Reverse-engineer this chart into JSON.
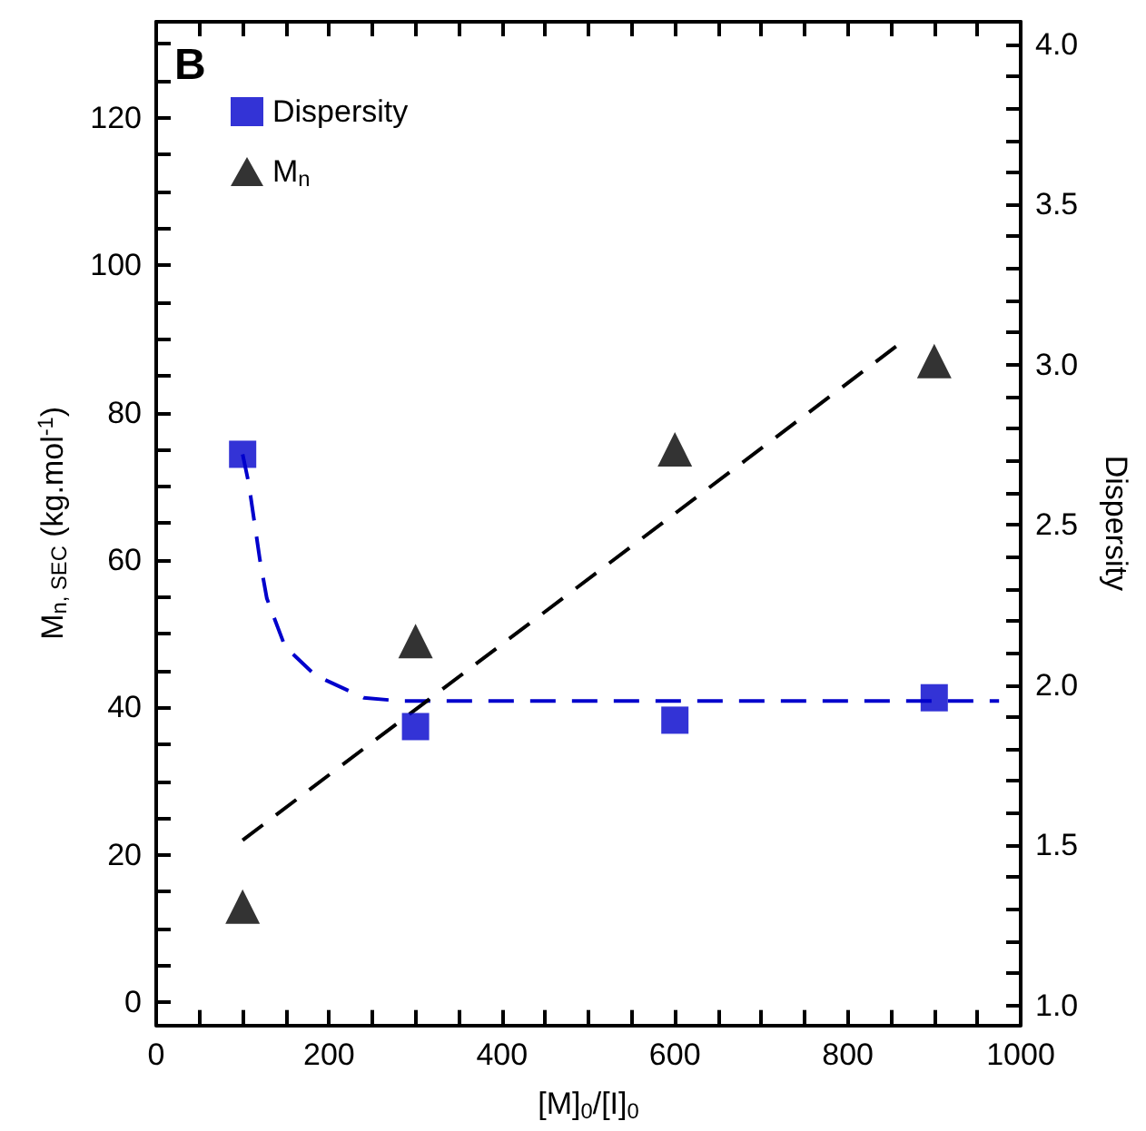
{
  "chart_data": {
    "type": "scatter",
    "xlabel": "[M]$_{0}$/[I]$_{0}$",
    "ylabel": "M$_{n, SEC}$ (kg.mol$^{-1}$)",
    "y2label": "Dispersity",
    "annotations": [
      "B"
    ],
    "xlim": [
      0,
      1000
    ],
    "xticks": [
      0,
      {
        "value": 50,
        "label": null
      },
      {
        "value": 100,
        "label": null
      },
      {
        "value": 150,
        "label": null
      },
      200,
      {
        "value": 250,
        "label": null
      },
      {
        "value": 300,
        "label": null
      },
      {
        "value": 350,
        "label": null
      },
      400,
      {
        "value": 450,
        "label": null
      },
      {
        "value": 500,
        "label": null
      },
      {
        "value": 550,
        "label": null
      },
      600,
      {
        "value": 650,
        "label": null
      },
      {
        "value": 700,
        "label": null
      },
      {
        "value": 750,
        "label": null
      },
      800,
      {
        "value": 850,
        "label": null
      },
      {
        "value": 900,
        "label": null
      },
      {
        "value": 950,
        "label": null
      },
      1000
    ],
    "ylim": [
      -3,
      133
    ],
    "yticks": [
      0,
      {
        "value": 5,
        "label": null
      },
      {
        "value": 10,
        "label": null
      },
      {
        "value": 15,
        "label": null
      },
      20,
      {
        "value": 25,
        "label": null
      },
      {
        "value": 30,
        "label": null
      },
      {
        "value": 35,
        "label": null
      },
      40,
      {
        "value": 45,
        "label": null
      },
      {
        "value": 50,
        "label": null
      },
      {
        "value": 55,
        "label": null
      },
      60,
      {
        "value": 65,
        "label": null
      },
      {
        "value": 70,
        "label": null
      },
      {
        "value": 75,
        "label": null
      },
      80,
      {
        "value": 85,
        "label": null
      },
      {
        "value": 90,
        "label": null
      },
      {
        "value": 95,
        "label": null
      },
      100,
      {
        "value": 105,
        "label": null
      },
      {
        "value": 110,
        "label": null
      },
      {
        "value": 115,
        "label": null
      },
      120,
      {
        "value": 125,
        "label": null
      },
      {
        "value": 130,
        "label": null
      }
    ],
    "y2lim": [
      0.94,
      4.07
    ],
    "y2ticks": [
      {
        "value": 1,
        "label": "1.0"
      },
      {
        "value": 1.1,
        "label": null
      },
      {
        "value": 1.2,
        "label": null
      },
      {
        "value": 1.3,
        "label": null
      },
      {
        "value": 1.4,
        "label": null
      },
      1.5,
      {
        "value": 1.6,
        "label": null
      },
      {
        "value": 1.7,
        "label": null
      },
      {
        "value": 1.8,
        "label": null
      },
      {
        "value": 1.9,
        "label": null
      },
      {
        "value": 2,
        "label": "2.0"
      },
      {
        "value": 2.1,
        "label": null
      },
      {
        "value": 2.2,
        "label": null
      },
      {
        "value": 2.3,
        "label": null
      },
      {
        "value": 2.4,
        "label": null
      },
      2.5,
      {
        "value": 2.6,
        "label": null
      },
      {
        "value": 2.7,
        "label": null
      },
      {
        "value": 2.8,
        "label": null
      },
      {
        "value": 2.9,
        "label": null
      },
      {
        "value": 3,
        "label": "3.0"
      },
      {
        "value": 3.1,
        "label": null
      },
      {
        "value": 3.2,
        "label": null
      },
      {
        "value": 3.3,
        "label": null
      },
      {
        "value": 3.4,
        "label": null
      },
      3.5,
      {
        "value": 3.6,
        "label": null
      },
      {
        "value": 3.7,
        "label": null
      },
      {
        "value": 3.8,
        "label": null
      },
      {
        "value": 3.9,
        "label": null
      },
      {
        "value": 4,
        "label": "4.0"
      }
    ],
    "legend": "top left",
    "grid": false,
    "series": [
      {
        "name": "Dispersity",
        "axis": "y2",
        "marker": "square",
        "color": "#0000cc",
        "x": [
          100,
          300,
          600,
          900
        ],
        "values": [
          2.72,
          1.87,
          1.89,
          1.96
        ]
      },
      {
        "name": "M$_{n}$",
        "marker": "triangle",
        "color": "#000000",
        "x": [
          100,
          300,
          600,
          900
        ],
        "values": [
          13,
          49,
          75,
          87
        ]
      },
      {
        "type": "line",
        "axis": "y2",
        "marker": "none",
        "line_style": "dashed",
        "color": "#0000cc",
        "x": [
          100,
          107,
          120,
          128,
          149,
          184,
          240,
          282,
          975
        ],
        "values": [
          2.72,
          2.63,
          2.39,
          2.27,
          2.12,
          2.03,
          1.96,
          1.95,
          1.95
        ]
      },
      {
        "type": "line",
        "marker": "none",
        "line_style": "dashed",
        "color": "#000000",
        "x": [
          100,
          863
        ],
        "values": [
          22,
          89.6
        ]
      }
    ]
  }
}
